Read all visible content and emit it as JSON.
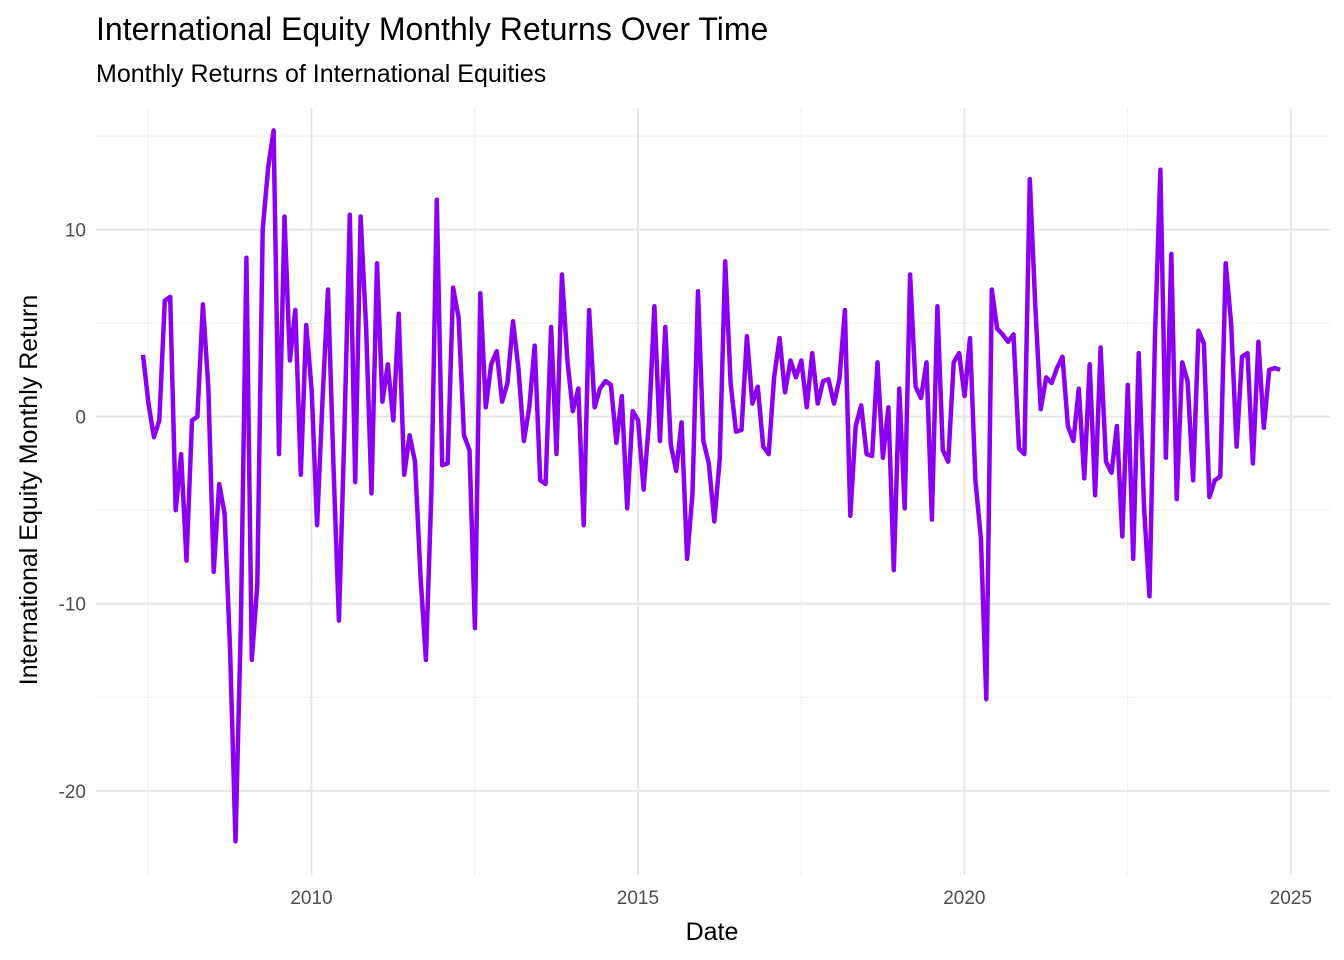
{
  "chart_data": {
    "type": "line",
    "title": "International Equity Monthly Returns Over Time",
    "subtitle": "Monthly Returns of International Equities",
    "xlabel": "Date",
    "ylabel": "International Equity Monthly Return",
    "x_ticks": [
      "2010",
      "2015",
      "2020",
      "2025"
    ],
    "x_tick_values": [
      2010,
      2015,
      2020,
      2025
    ],
    "y_ticks": [
      "-20",
      "-10",
      "0",
      "10"
    ],
    "y_tick_values": [
      -20,
      -10,
      0,
      10
    ],
    "xlim": [
      2006.7,
      2025.6
    ],
    "ylim": [
      -24.5,
      16.5
    ],
    "grid": true,
    "line_color": "#8B00F0",
    "series": [
      {
        "x_start": 2007.42,
        "step": 0.08333,
        "values": [
          3.3,
          0.7,
          -1.1,
          -0.2,
          6.2,
          6.4,
          -5.0,
          -2.0,
          -7.7,
          -0.2,
          0.0,
          6.0,
          1.6,
          -8.3,
          -3.6,
          -5.2,
          -12.5,
          -22.7,
          -11.0,
          8.5,
          -13.0,
          -9.0,
          10.0,
          13.3,
          15.3,
          -2.0,
          10.7,
          3.0,
          5.7,
          -3.1,
          4.9,
          1.4,
          -5.8,
          1.0,
          6.8,
          -2.5,
          -10.9,
          -1.0,
          10.8,
          -3.5,
          10.7,
          4.8,
          -4.1,
          8.2,
          0.8,
          2.8,
          -0.2,
          5.5,
          -3.1,
          -1.0,
          -2.4,
          -8.5,
          -13.0,
          -4.0,
          11.6,
          -2.6,
          -2.5,
          6.9,
          5.3,
          -1.0,
          -1.8,
          -11.3,
          6.6,
          0.5,
          2.8,
          3.5,
          0.8,
          1.8,
          5.1,
          2.6,
          -1.3,
          0.5,
          3.8,
          -3.4,
          -3.6,
          4.8,
          -2.0,
          7.6,
          3.0,
          0.3,
          1.5,
          -5.8,
          5.7,
          0.5,
          1.5,
          1.9,
          1.7,
          -1.4,
          1.1,
          -4.9,
          0.3,
          -0.2,
          -3.9,
          -0.3,
          5.9,
          -1.3,
          4.8,
          -1.5,
          -2.9,
          -0.3,
          -7.6,
          -4.1,
          6.7,
          -1.3,
          -2.5,
          -5.6,
          -2.3,
          8.3,
          1.8,
          -0.8,
          -0.7,
          4.3,
          0.7,
          1.6,
          -1.6,
          -2.0,
          2.1,
          4.2,
          1.3,
          3.0,
          2.1,
          3.0,
          0.5,
          3.4,
          0.7,
          1.9,
          2.0,
          0.7,
          2.0,
          5.7,
          -5.3,
          -0.5,
          0.6,
          -2.0,
          -2.1,
          2.9,
          -2.2,
          0.5,
          -8.2,
          1.5,
          -4.9,
          7.6,
          1.6,
          1.0,
          2.9,
          -5.5,
          5.9,
          -1.8,
          -2.4,
          2.9,
          3.4,
          1.1,
          4.2,
          -3.4,
          -6.5,
          -15.1,
          6.8,
          4.7,
          4.4,
          4.0,
          4.4,
          -1.7,
          -2.0,
          12.7,
          5.9,
          0.4,
          2.1,
          1.8,
          2.6,
          3.2,
          -0.5,
          -1.3,
          1.5,
          -3.3,
          2.8,
          -4.2,
          3.7,
          -2.4,
          -3.0,
          -0.5,
          -6.4,
          1.7,
          -7.6,
          3.4,
          -4.9,
          -9.6,
          4.3,
          13.2,
          -2.2,
          8.7,
          -4.4,
          2.9,
          1.9,
          -3.4,
          4.6,
          3.9,
          -4.3,
          -3.4,
          -3.2,
          8.2,
          5.0,
          -1.6,
          3.2,
          3.4,
          -2.5,
          4.0,
          -0.6,
          2.5,
          2.6,
          2.5
        ]
      }
    ]
  }
}
